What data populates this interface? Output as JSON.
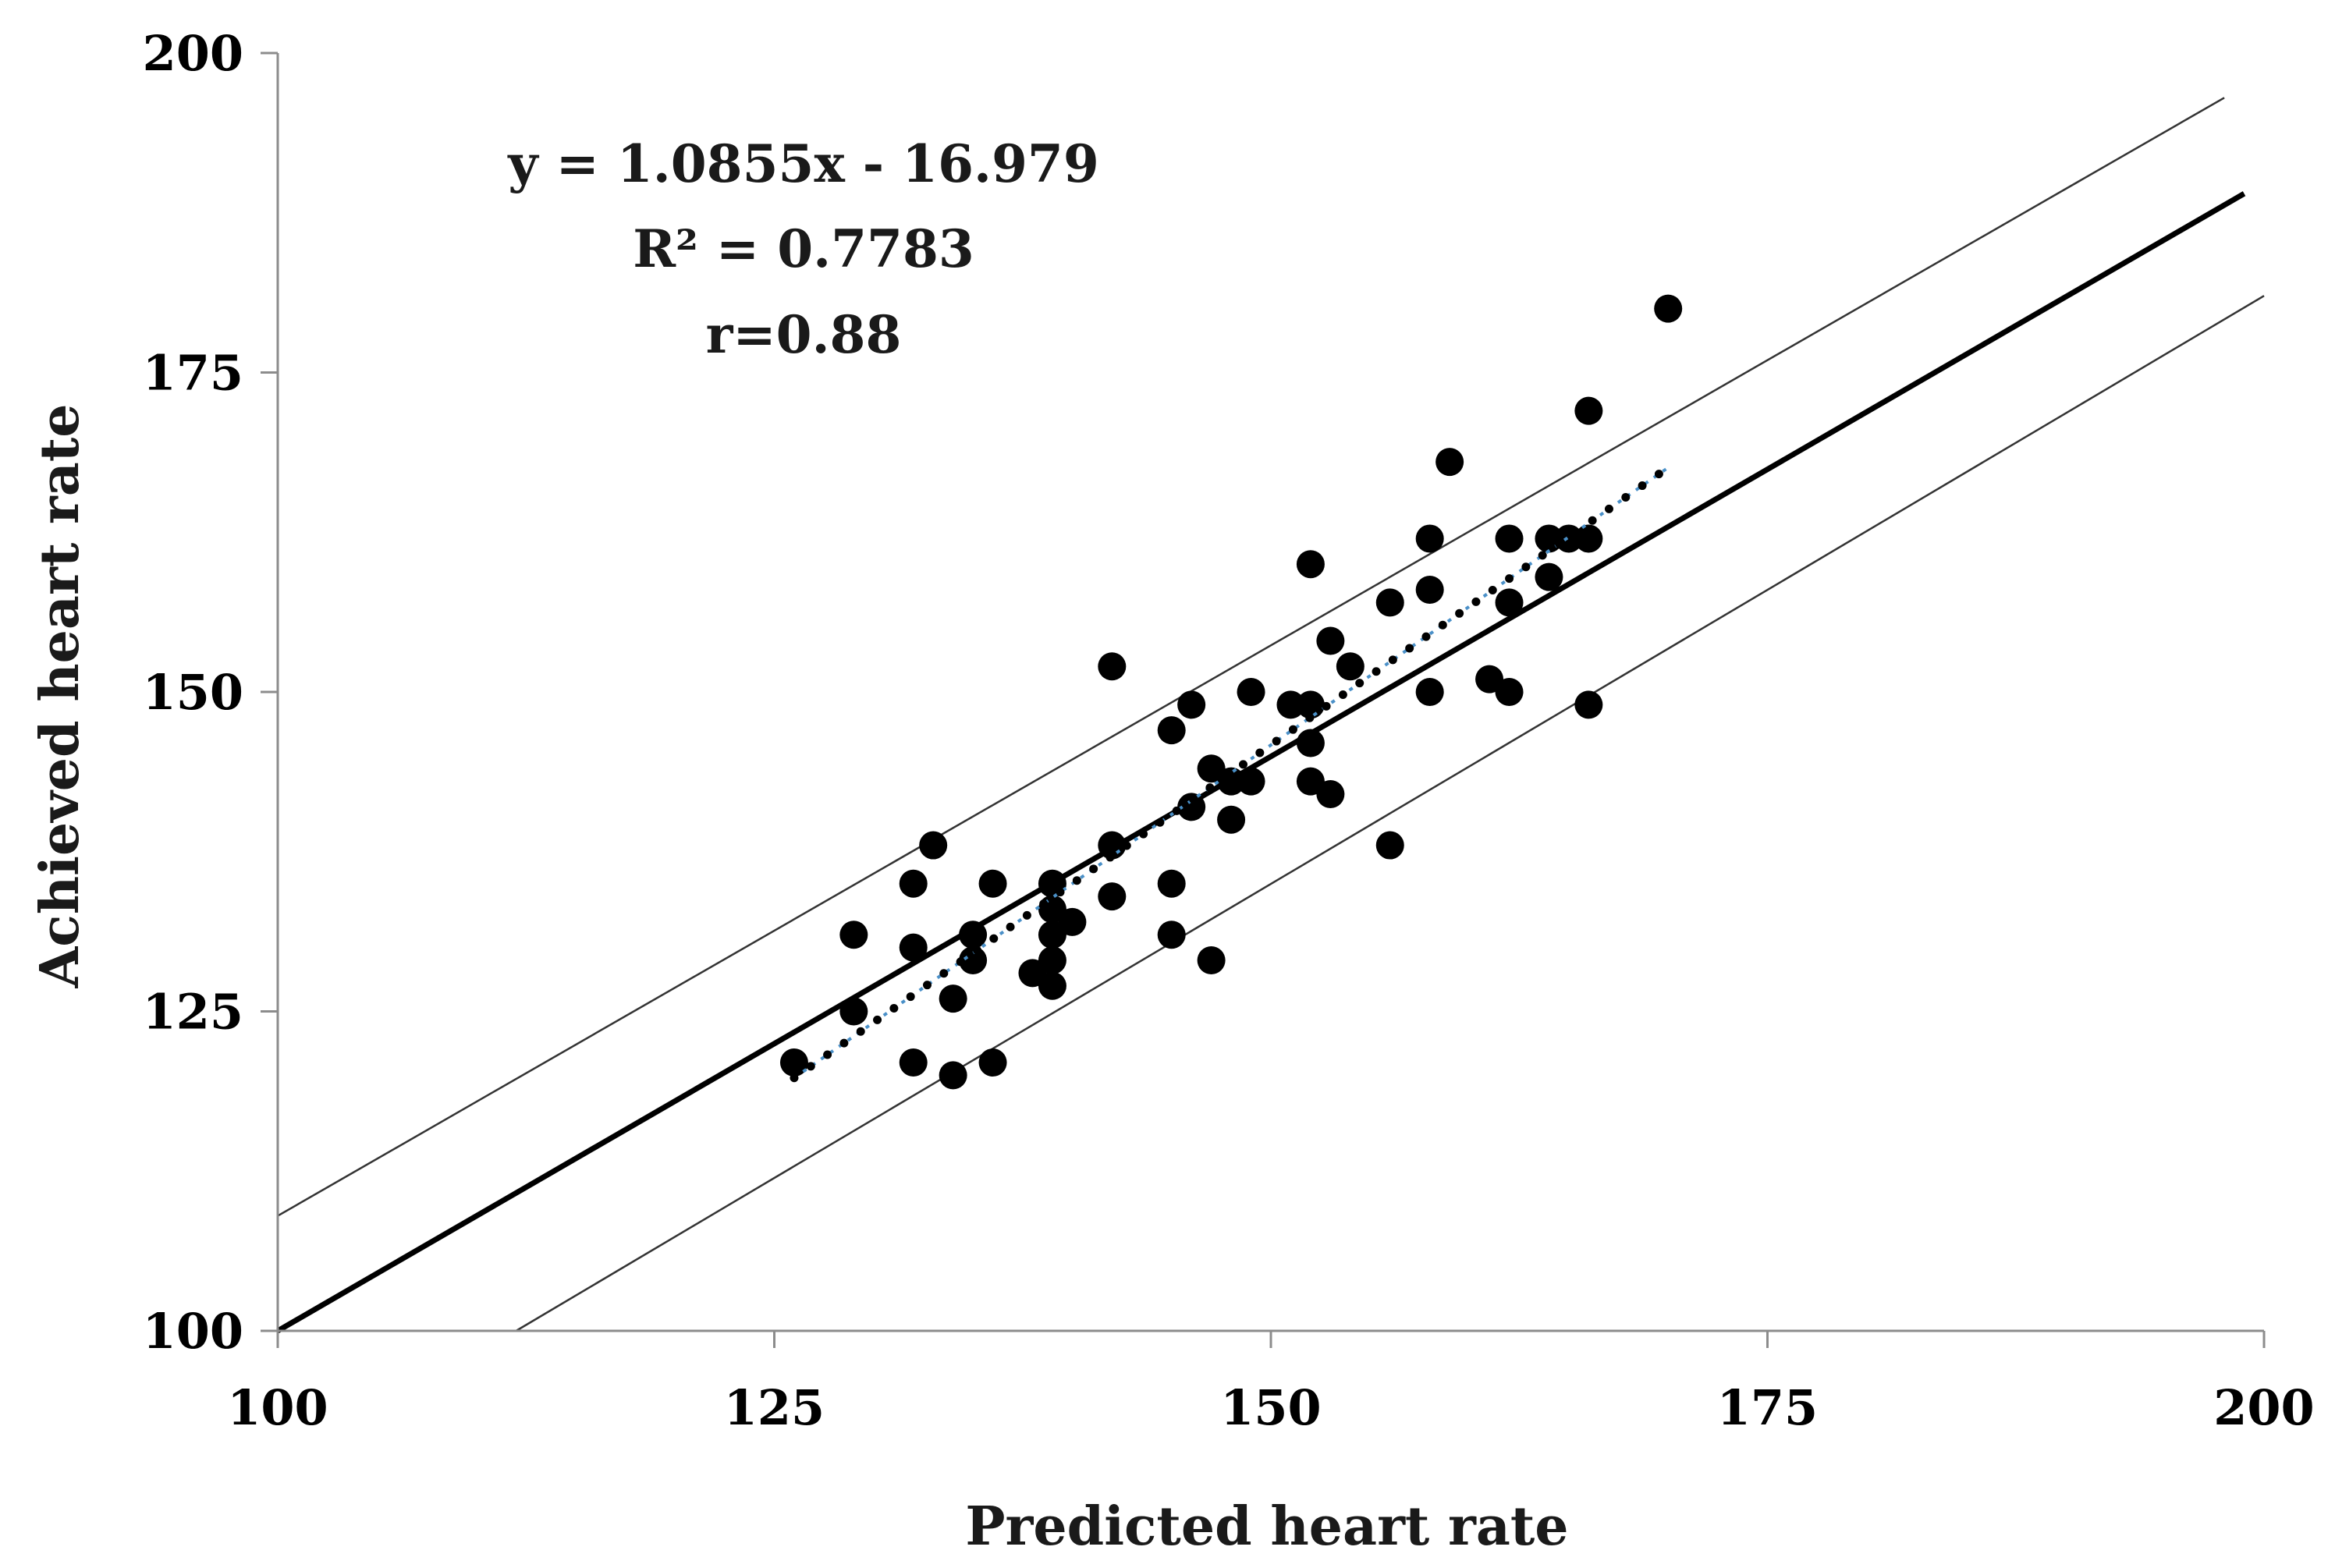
{
  "chart_data": {
    "type": "scatter",
    "xlabel": "Predicted  heart rate",
    "ylabel": "Achieved  heart rate",
    "xlim": [
      100,
      200
    ],
    "ylim": [
      100,
      200
    ],
    "xticks": [
      100,
      125,
      150,
      175,
      200
    ],
    "yticks": [
      100,
      125,
      150,
      175,
      200
    ],
    "xtick_labels": [
      "100",
      "125",
      "150",
      "175",
      "200"
    ],
    "ytick_labels": [
      "100",
      "125",
      "150",
      "175",
      "200"
    ],
    "grid": false,
    "annotations": [
      "y = 1.0855x - 16.979",
      "R² = 0.7783",
      "r=0.88"
    ],
    "colors": {
      "points": "#000000",
      "identity_line": "#000000",
      "limit_lines": "#333333",
      "trendline_blue": "#4a90c8",
      "trendline_dots": "#000000",
      "axis": "#8c8c8c"
    },
    "points": [
      {
        "x": 126,
        "y": 121
      },
      {
        "x": 129,
        "y": 131
      },
      {
        "x": 129,
        "y": 125
      },
      {
        "x": 132,
        "y": 135
      },
      {
        "x": 132,
        "y": 130
      },
      {
        "x": 132,
        "y": 121
      },
      {
        "x": 133,
        "y": 138
      },
      {
        "x": 134,
        "y": 126
      },
      {
        "x": 134,
        "y": 120
      },
      {
        "x": 135,
        "y": 131
      },
      {
        "x": 135,
        "y": 129
      },
      {
        "x": 136,
        "y": 135
      },
      {
        "x": 136,
        "y": 121
      },
      {
        "x": 138,
        "y": 128
      },
      {
        "x": 139,
        "y": 135
      },
      {
        "x": 139,
        "y": 133
      },
      {
        "x": 139,
        "y": 131
      },
      {
        "x": 139,
        "y": 129
      },
      {
        "x": 139,
        "y": 127
      },
      {
        "x": 140,
        "y": 132
      },
      {
        "x": 142,
        "y": 152
      },
      {
        "x": 142,
        "y": 138
      },
      {
        "x": 142,
        "y": 134
      },
      {
        "x": 145,
        "y": 147
      },
      {
        "x": 145,
        "y": 135
      },
      {
        "x": 145,
        "y": 131
      },
      {
        "x": 146,
        "y": 149
      },
      {
        "x": 146,
        "y": 141
      },
      {
        "x": 147,
        "y": 144
      },
      {
        "x": 147,
        "y": 129
      },
      {
        "x": 148,
        "y": 143
      },
      {
        "x": 148,
        "y": 140
      },
      {
        "x": 149,
        "y": 150
      },
      {
        "x": 149,
        "y": 143
      },
      {
        "x": 151,
        "y": 149
      },
      {
        "x": 152,
        "y": 160
      },
      {
        "x": 152,
        "y": 149
      },
      {
        "x": 152,
        "y": 146
      },
      {
        "x": 152,
        "y": 143
      },
      {
        "x": 153,
        "y": 154
      },
      {
        "x": 153,
        "y": 142
      },
      {
        "x": 154,
        "y": 152
      },
      {
        "x": 156,
        "y": 157
      },
      {
        "x": 156,
        "y": 138
      },
      {
        "x": 158,
        "y": 162
      },
      {
        "x": 158,
        "y": 158
      },
      {
        "x": 158,
        "y": 150
      },
      {
        "x": 159,
        "y": 168
      },
      {
        "x": 161,
        "y": 151
      },
      {
        "x": 162,
        "y": 162
      },
      {
        "x": 162,
        "y": 157
      },
      {
        "x": 162,
        "y": 150
      },
      {
        "x": 164,
        "y": 162
      },
      {
        "x": 164,
        "y": 159
      },
      {
        "x": 165,
        "y": 162
      },
      {
        "x": 166,
        "y": 172
      },
      {
        "x": 166,
        "y": 162
      },
      {
        "x": 166,
        "y": 149
      },
      {
        "x": 170,
        "y": 180
      }
    ],
    "identity_line": {
      "x1": 100,
      "y1": 100,
      "x2": 199,
      "y2": 189
    },
    "upper_limit_line": {
      "x1": 100,
      "y1": 109,
      "x2": 198,
      "y2": 196.5
    },
    "lower_limit_line": {
      "x1": 112,
      "y1": 100,
      "x2": 200,
      "y2": 181
    },
    "trendline": {
      "slope": 1.0855,
      "intercept": -16.979,
      "x_start": 126,
      "x_end": 170
    }
  }
}
